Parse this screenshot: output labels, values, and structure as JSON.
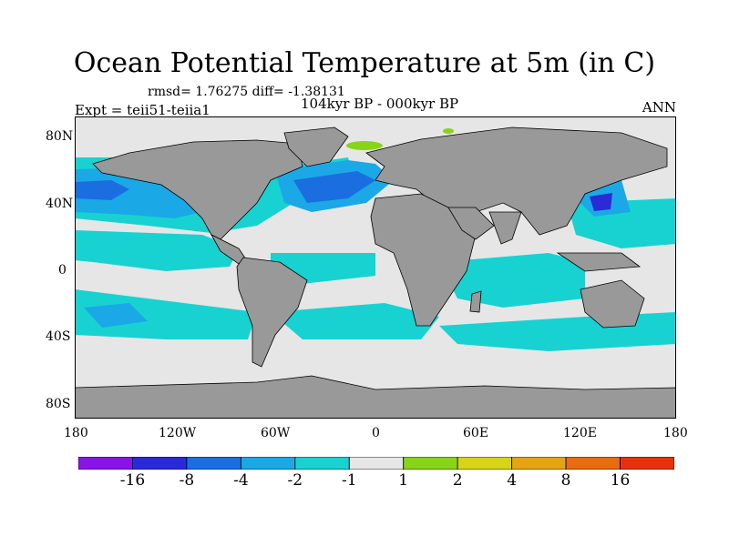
{
  "title": "Ocean Potential Temperature at 5m (in C)",
  "stats": "rmsd= 1.76275 diff= -1.38131",
  "period": "104kyr BP - 000kyr BP",
  "experiment": "Expt = teii51-teiia1",
  "season": "ANN",
  "lat_ticks": [
    "80N",
    "40N",
    "0",
    "40S",
    "80S"
  ],
  "lon_ticks": [
    "180",
    "120W",
    "60W",
    "0",
    "60E",
    "120E",
    "180"
  ],
  "colorbar": {
    "colors": [
      "#8a14e6",
      "#2a2ad6",
      "#1a6ee0",
      "#1aa8e6",
      "#18d2d2",
      "#e6e6e6",
      "#88d418",
      "#d8d418",
      "#e6a414",
      "#e66c0e",
      "#e6320a"
    ],
    "labels": [
      "-16",
      "-8",
      "-4",
      "-2",
      "-1",
      "1",
      "2",
      "4",
      "8",
      "16"
    ]
  },
  "map_colors": {
    "land": "#999999",
    "neutral": "#e6e6e6",
    "cool1": "#18d2d2",
    "cool2": "#1aa8e6",
    "cool4": "#1a6ee0",
    "cool8": "#2a2ad6",
    "warm2": "#88d418"
  }
}
